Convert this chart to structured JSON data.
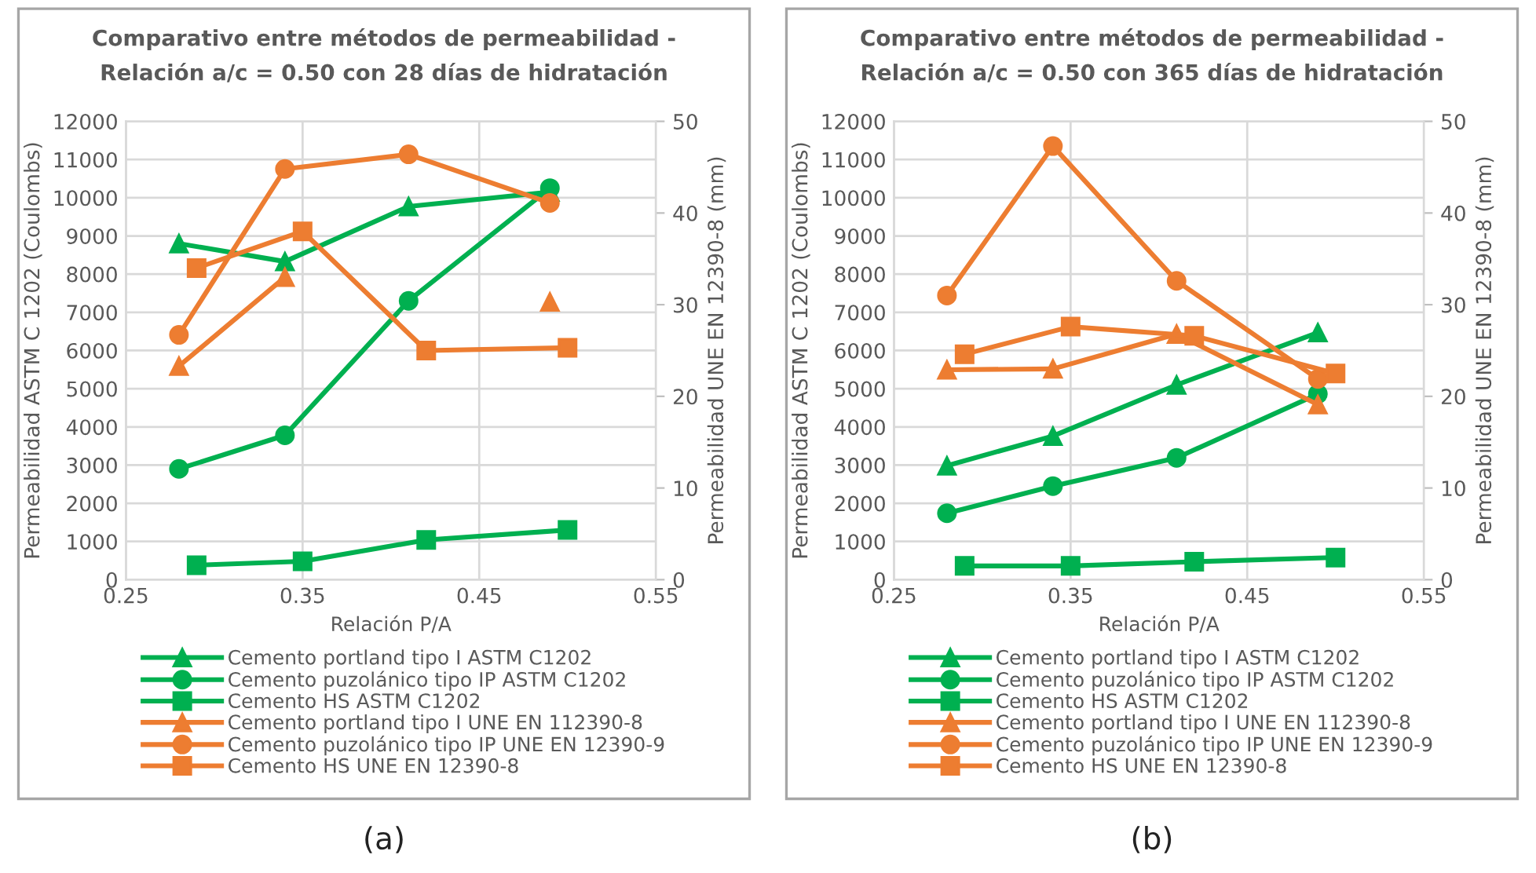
{
  "chart_data": [
    {
      "type": "line",
      "title": "Comparativo entre métodos de permeabilidad -",
      "subtitle": "Relación a/c = 0.50 con 28 días de hidratación",
      "xlabel": "Relación P/A",
      "ylabel": "Permeabilidad ASTM C 1202 (Coulombs)",
      "y2label": "Permeabilidad UNE EN 12390-8 (mm)",
      "xlim": [
        0.25,
        0.55
      ],
      "xticks": [
        0.25,
        0.35,
        0.45,
        0.55
      ],
      "ylim": [
        0,
        12000
      ],
      "yticks": [
        0,
        1000,
        2000,
        3000,
        4000,
        5000,
        6000,
        7000,
        8000,
        9000,
        10000,
        11000,
        12000
      ],
      "y2lim": [
        0,
        50
      ],
      "y2ticks": [
        0,
        10,
        20,
        30,
        40,
        50
      ],
      "grid": true,
      "legend": "bottom",
      "annotations": [
        "(a)"
      ],
      "series": [
        {
          "name": "Cemento portland tipo I ASTM C1202",
          "color": "#00b050",
          "marker": "triangle",
          "x": [
            0.28,
            0.34,
            0.41,
            0.49
          ],
          "values": [
            8800,
            8330,
            9770,
            10150
          ]
        },
        {
          "name": "Cemento puzolánico tipo IP ASTM C1202",
          "color": "#00b050",
          "marker": "circle",
          "x": [
            0.28,
            0.34,
            0.41,
            0.49
          ],
          "values": [
            2900,
            3780,
            7300,
            10250
          ]
        },
        {
          "name": "Cemento HS ASTM C1202",
          "color": "#00b050",
          "marker": "square",
          "x": [
            0.29,
            0.35,
            0.42,
            0.5
          ],
          "values": [
            380,
            480,
            1040,
            1300
          ]
        },
        {
          "name": "Cemento portland tipo I UNE EN 112390-8",
          "color": "#ed7d31",
          "marker": "triangle",
          "axis": "y2",
          "x": [
            0.28,
            0.34,
            0.41,
            0.49
          ],
          "values": [
            23.3,
            33.0,
            null,
            30.3
          ]
        },
        {
          "name": "Cemento puzolánico tipo IP UNE EN 12390-9",
          "color": "#ed7d31",
          "marker": "circle",
          "axis": "y2",
          "x": [
            0.28,
            0.34,
            0.41,
            0.49
          ],
          "values": [
            26.7,
            44.8,
            46.4,
            41.1
          ]
        },
        {
          "name": "Cemento HS UNE EN 12390-8",
          "color": "#ed7d31",
          "marker": "square",
          "axis": "y2",
          "x": [
            0.29,
            0.35,
            0.42,
            0.5
          ],
          "values": [
            34.0,
            38.0,
            25.0,
            25.3
          ]
        }
      ]
    },
    {
      "type": "line",
      "title": "Comparativo entre métodos de permeabilidad -",
      "subtitle": "Relación a/c = 0.50 con 365 días de hidratación",
      "xlabel": "Relación P/A",
      "ylabel": "Permeabilidad ASTM C 1202 (Coulombs)",
      "y2label": "Permeabilidad UNE EN 12390-8 (mm)",
      "xlim": [
        0.25,
        0.55
      ],
      "xticks": [
        0.25,
        0.35,
        0.45,
        0.55
      ],
      "ylim": [
        0,
        12000
      ],
      "yticks": [
        0,
        1000,
        2000,
        3000,
        4000,
        5000,
        6000,
        7000,
        8000,
        9000,
        10000,
        11000,
        12000
      ],
      "y2lim": [
        0,
        50
      ],
      "y2ticks": [
        0,
        10,
        20,
        30,
        40,
        50
      ],
      "grid": true,
      "legend": "bottom",
      "annotations": [
        "(b)"
      ],
      "series": [
        {
          "name": "Cemento portland tipo I ASTM C1202",
          "color": "#00b050",
          "marker": "triangle",
          "x": [
            0.28,
            0.34,
            0.41,
            0.49
          ],
          "values": [
            2985,
            3760,
            5100,
            6470
          ]
        },
        {
          "name": "Cemento puzolánico tipo IP ASTM C1202",
          "color": "#00b050",
          "marker": "circle",
          "x": [
            0.28,
            0.34,
            0.41,
            0.49
          ],
          "values": [
            1740,
            2450,
            3190,
            4860
          ]
        },
        {
          "name": "Cemento HS ASTM C1202",
          "color": "#00b050",
          "marker": "square",
          "x": [
            0.29,
            0.35,
            0.42,
            0.5
          ],
          "values": [
            360,
            360,
            470,
            580
          ]
        },
        {
          "name": "Cemento portland tipo I UNE EN 112390-8",
          "color": "#ed7d31",
          "marker": "triangle",
          "axis": "y2",
          "x": [
            0.28,
            0.34,
            0.41,
            0.49
          ],
          "values": [
            22.9,
            23.0,
            26.8,
            19.1
          ]
        },
        {
          "name": "Cemento puzolánico tipo IP UNE EN 12390-9",
          "color": "#ed7d31",
          "marker": "circle",
          "axis": "y2",
          "x": [
            0.28,
            0.34,
            0.41,
            0.49
          ],
          "values": [
            31.0,
            47.3,
            32.6,
            21.9
          ]
        },
        {
          "name": "Cemento HS UNE EN 12390-8",
          "color": "#ed7d31",
          "marker": "square",
          "axis": "y2",
          "x": [
            0.29,
            0.35,
            0.42,
            0.5
          ],
          "values": [
            24.6,
            27.6,
            26.6,
            22.5
          ]
        }
      ]
    }
  ]
}
